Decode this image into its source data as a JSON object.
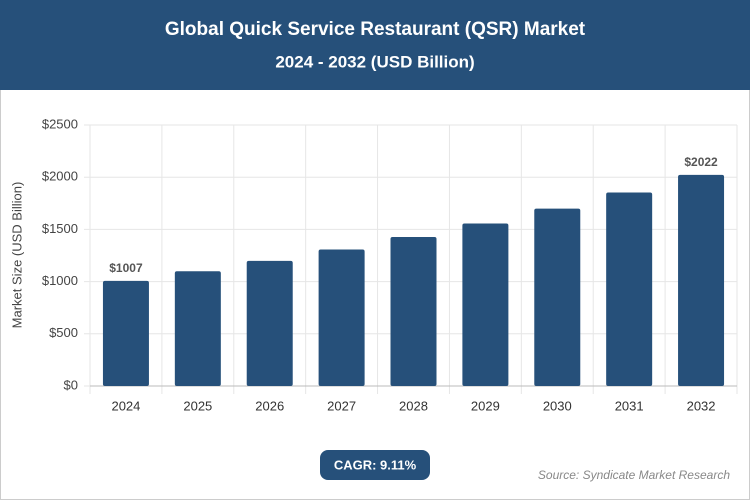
{
  "chart_data": {
    "type": "bar",
    "title": "Global Quick Service Restaurant (QSR) Market",
    "subtitle": "2024 - 2032 (USD Billion)",
    "y_label": "Market Size (USD Billion)",
    "categories": [
      "2024",
      "2025",
      "2026",
      "2027",
      "2028",
      "2029",
      "2030",
      "2031",
      "2032"
    ],
    "values": [
      1007,
      1099,
      1199,
      1308,
      1427,
      1557,
      1699,
      1854,
      2022
    ],
    "value_labels": [
      "$1007",
      null,
      null,
      null,
      null,
      null,
      null,
      null,
      "$2022"
    ],
    "color": "#26507a",
    "ylim": [
      0,
      2500
    ],
    "yticks": [
      {
        "value": 0,
        "label": "$0"
      },
      {
        "value": 500,
        "label": "$500"
      },
      {
        "value": 1000,
        "label": "$1000"
      },
      {
        "value": 1500,
        "label": "$1500"
      },
      {
        "value": 2000,
        "label": "$2000"
      },
      {
        "value": 2500,
        "label": "$2500"
      }
    ],
    "grid": true,
    "cagr": "CAGR: 9.11%",
    "source": "Source: Syndicate Market Research"
  }
}
